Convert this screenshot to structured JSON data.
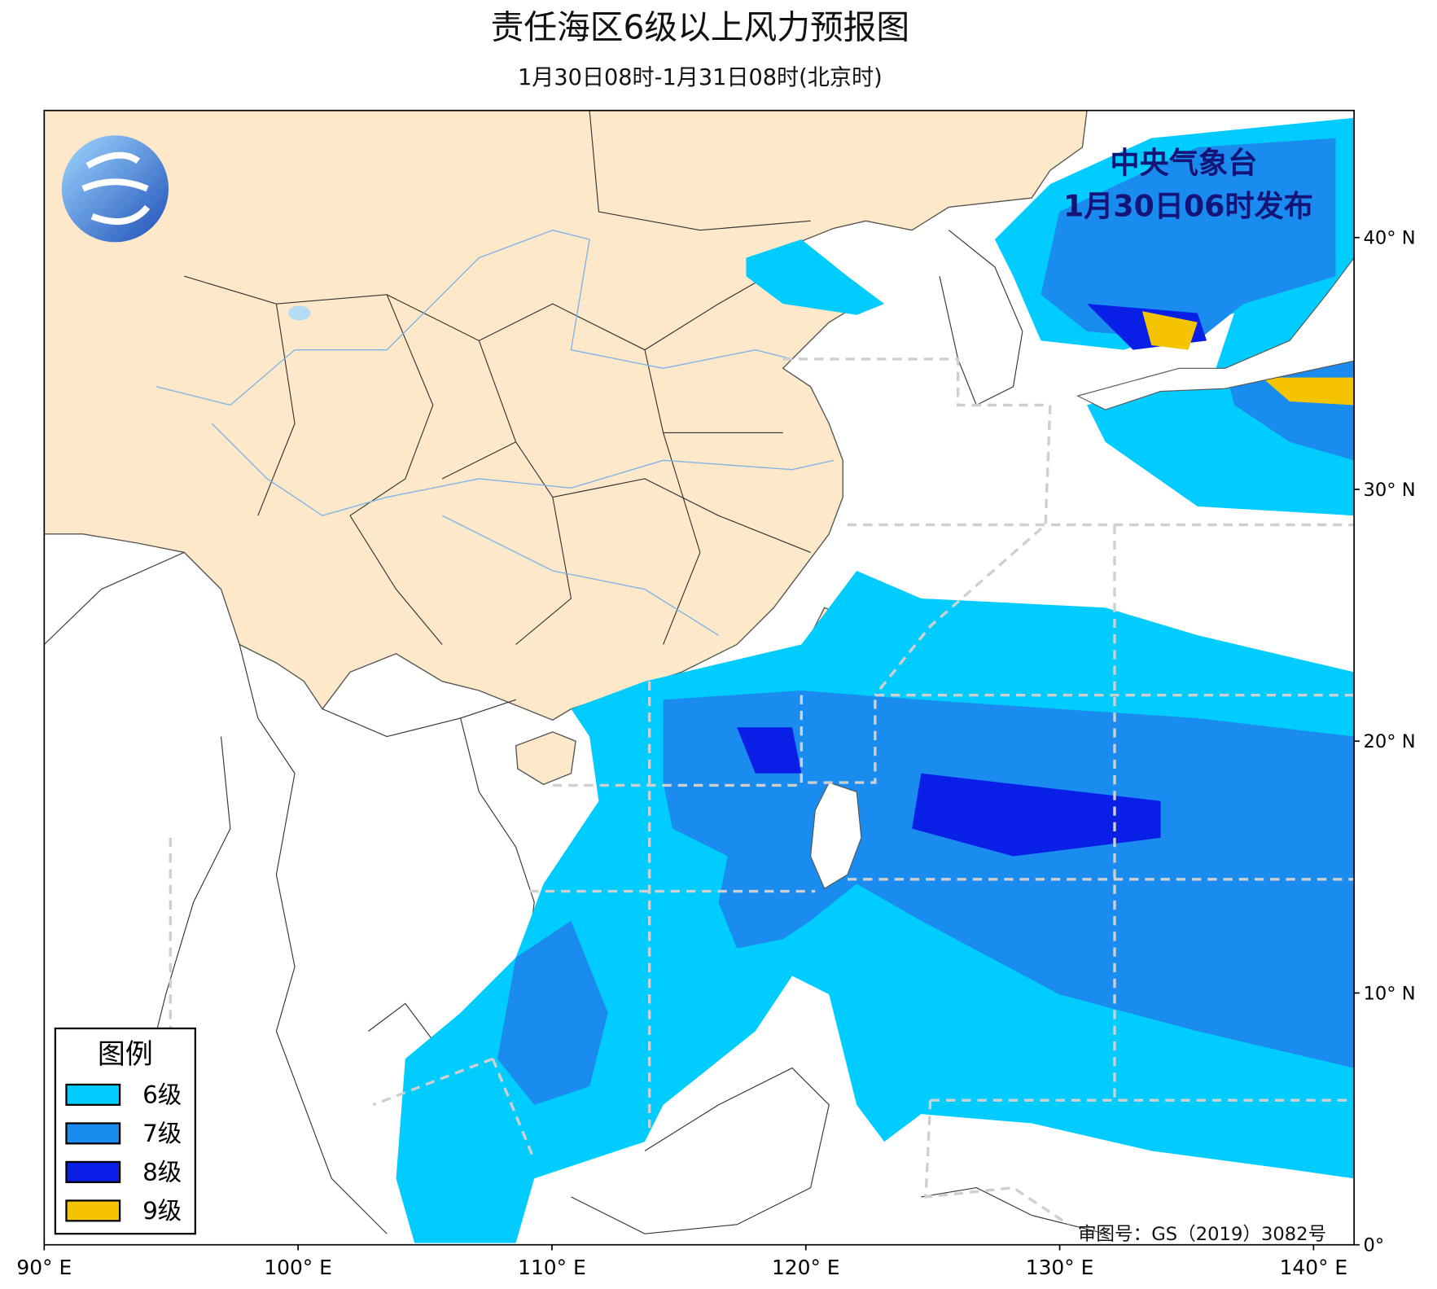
{
  "header": {
    "title": "责任海区6级以上风力预报图",
    "subtitle": "1月30日08时-1月31日08时(北京时)"
  },
  "publisher": {
    "name": "中央气象台",
    "issued": "1月30日06时发布"
  },
  "legend": {
    "title": "图例",
    "items": [
      {
        "label": "6级",
        "color": "#00ccff"
      },
      {
        "label": "7级",
        "color": "#1a8cf0"
      },
      {
        "label": "8级",
        "color": "#0a1fe6"
      },
      {
        "label": "9级",
        "color": "#f5c400"
      }
    ]
  },
  "review_number": "审图号：GS（2019）3082号",
  "lon_ticks": [
    {
      "value": 90,
      "label": "90° E"
    },
    {
      "value": 100,
      "label": "100° E"
    },
    {
      "value": 110,
      "label": "110° E"
    },
    {
      "value": 120,
      "label": "120° E"
    },
    {
      "value": 130,
      "label": "130° E"
    },
    {
      "value": 140,
      "label": "140° E"
    }
  ],
  "lat_ticks": [
    {
      "value": 0,
      "label": "0°"
    },
    {
      "value": 10,
      "label": "10° N"
    },
    {
      "value": 20,
      "label": "20° N"
    },
    {
      "value": 30,
      "label": "30° N"
    },
    {
      "value": 40,
      "label": "40° N"
    }
  ]
}
